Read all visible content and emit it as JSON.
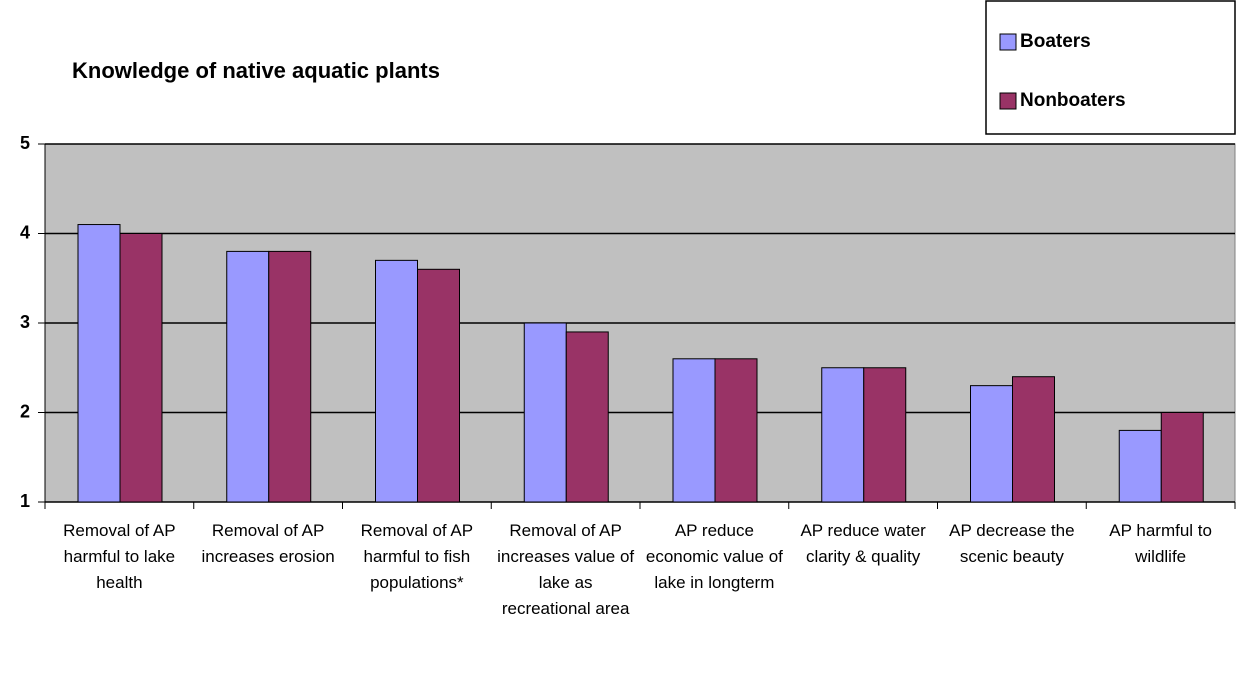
{
  "chart_data": {
    "type": "bar",
    "title": "Knowledge of native aquatic plants",
    "categories": [
      "Removal of AP harmful to lake health",
      "Removal of AP increases erosion",
      "Removal of AP harmful to fish populations*",
      "Removal of AP increases value of lake as recreational area",
      "AP reduce economic value of lake in longterm",
      "AP reduce water clarity & quality",
      "AP decrease the scenic beauty",
      "AP harmful to wildlife"
    ],
    "series": [
      {
        "name": "Boaters",
        "color": "#9999ff",
        "values": [
          4.1,
          3.8,
          3.7,
          3.0,
          2.6,
          2.5,
          2.3,
          1.8
        ]
      },
      {
        "name": "Nonboaters",
        "color": "#993366",
        "values": [
          4.0,
          3.8,
          3.6,
          2.9,
          2.6,
          2.5,
          2.4,
          2.0
        ]
      }
    ],
    "ylim": [
      1,
      5
    ],
    "yticks": [
      1,
      2,
      3,
      4,
      5
    ],
    "grid": true,
    "legend": "top-right",
    "plot_background": "#c0c0c0"
  }
}
